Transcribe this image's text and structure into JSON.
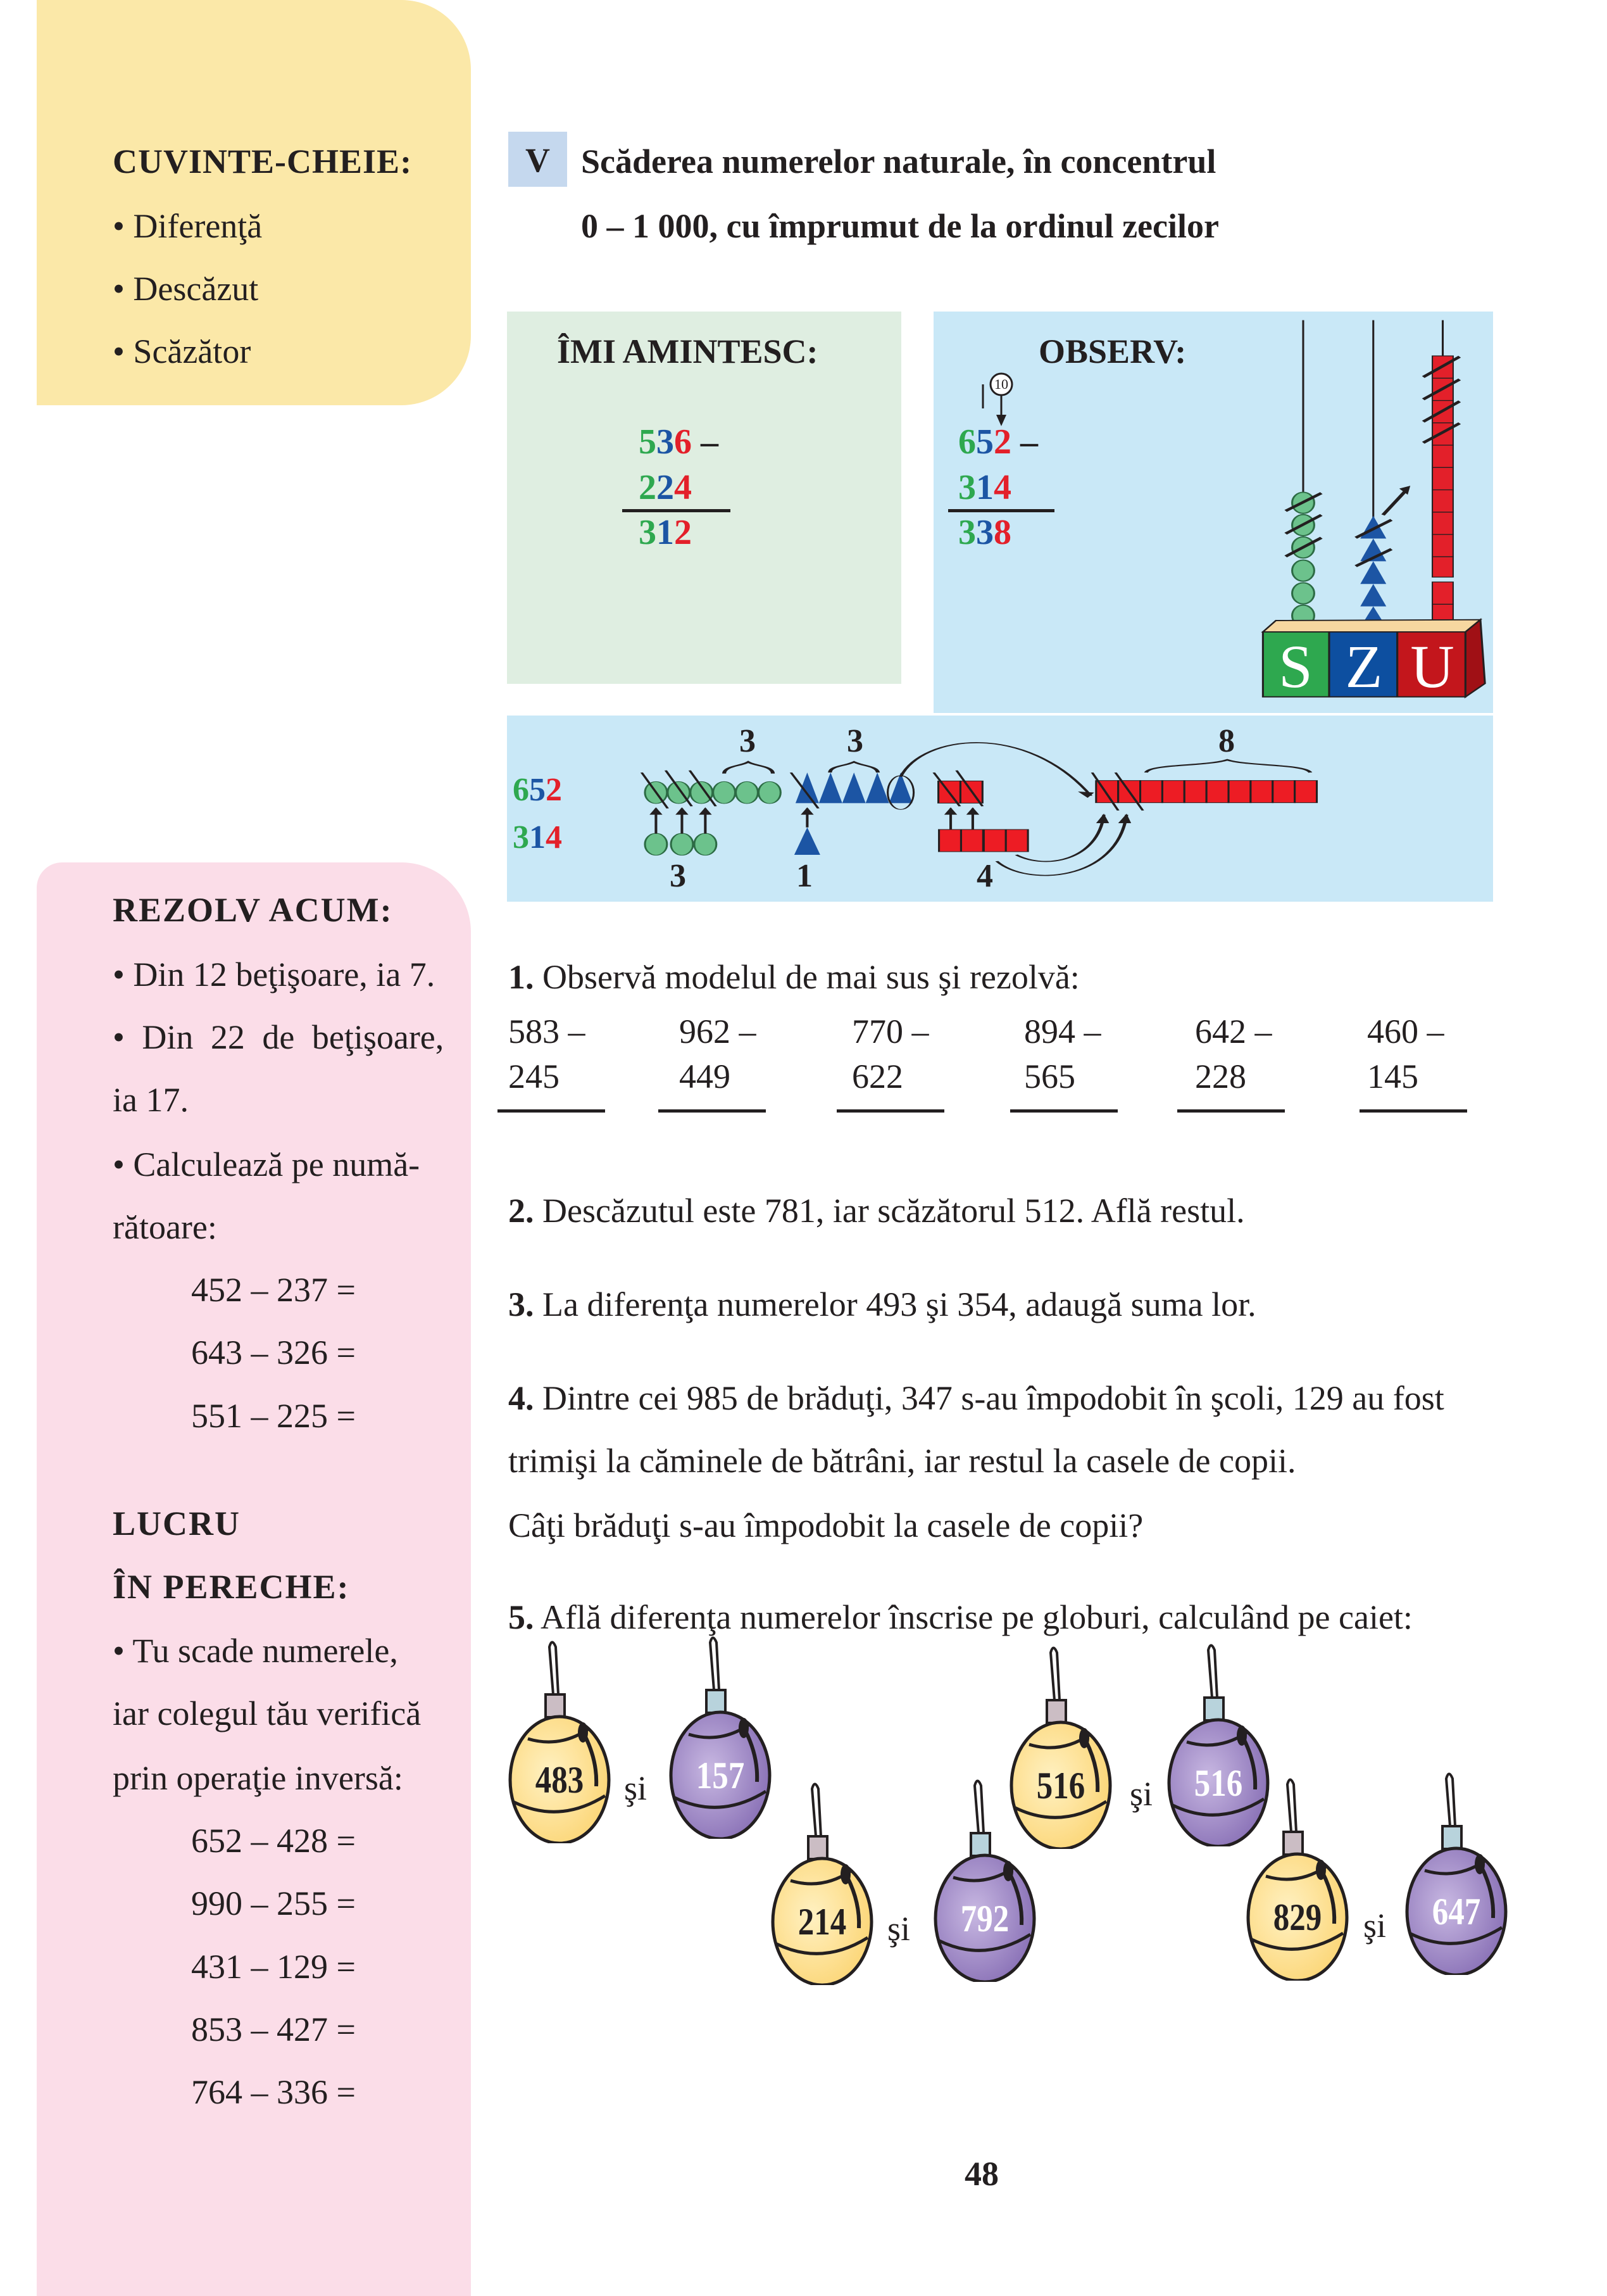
{
  "sidebar_top": {
    "heading": "CUVINTE-CHEIE:",
    "items": [
      "Diferenţă",
      "Descăzut",
      "Scăzător"
    ]
  },
  "lesson": {
    "number": "V",
    "title_lines": [
      "Scăderea numerelor naturale, în concentrul",
      "0 – 1 000, cu împrumut de la ordinul zecilor"
    ]
  },
  "imi_amintesc": {
    "heading": "ÎMI AMINTESC:",
    "minuend": [
      "5",
      "3",
      "6"
    ],
    "minus": "–",
    "subtrahend": [
      "2",
      "2",
      "4"
    ],
    "result": [
      "3",
      "1",
      "2"
    ]
  },
  "observ": {
    "heading": "OBSERV:",
    "borrow_badge": "10",
    "minuend": [
      "6",
      "5",
      "2"
    ],
    "minus": "–",
    "subtrahend": [
      "3",
      "1",
      "4"
    ],
    "result": [
      "3",
      "3",
      "8"
    ],
    "abacus_labels": [
      "S",
      "Z",
      "U"
    ]
  },
  "model": {
    "minuend": [
      "6",
      "5",
      "2"
    ],
    "subtrahend": [
      "3",
      "1",
      "4"
    ],
    "top_counts": [
      "3",
      "3",
      "8"
    ],
    "bottom_counts": [
      "3",
      "1",
      "4"
    ]
  },
  "colors": {
    "hundreds": "#2ea84f",
    "tens": "#1c55a4",
    "units": "#e3202a",
    "keywords_panel": "#fbe8a8",
    "sidebar_panel": "#fbdde8",
    "remember_panel": "#dfeee1",
    "observe_panel": "#c9e8f7"
  },
  "exercises": {
    "ex1": {
      "number": "1.",
      "text": "Observă modelul de mai sus şi rezolvă:",
      "problems": [
        {
          "top": "583 –",
          "bottom": "245"
        },
        {
          "top": "962 –",
          "bottom": "449"
        },
        {
          "top": "770 –",
          "bottom": "622"
        },
        {
          "top": "894 –",
          "bottom": "565"
        },
        {
          "top": "642 –",
          "bottom": "228"
        },
        {
          "top": "460 –",
          "bottom": "145"
        }
      ]
    },
    "ex2": {
      "number": "2.",
      "text": "Descăzutul este 781, iar scăzătorul 512. Află restul."
    },
    "ex3": {
      "number": "3.",
      "text": "La diferenţa numerelor 493 şi 354, adaugă suma lor."
    },
    "ex4": {
      "number": "4.",
      "lines": [
        "Dintre cei 985 de brăduţi, 347 s-au împodobit în şcoli, 129 au fost",
        "trimişi la căminele de bătrâni, iar restul la casele de copii.",
        "Câţi brăduţi s-au împodobit la casele de copii?"
      ]
    },
    "ex5": {
      "number": "5.",
      "text": "Află diferenţa numerelor înscrise pe globuri, calculând pe caiet:"
    }
  },
  "ornaments": [
    {
      "value": "483",
      "color": "yellow"
    },
    {
      "value": "157",
      "color": "purple"
    },
    {
      "value": "214",
      "color": "yellow"
    },
    {
      "value": "792",
      "color": "purple"
    },
    {
      "value": "516",
      "color": "yellow"
    },
    {
      "value": "516",
      "color": "purple"
    },
    {
      "value": "829",
      "color": "yellow"
    },
    {
      "value": "647",
      "color": "purple"
    }
  ],
  "and_word": "şi",
  "sidebar_bottom": {
    "rezolv": {
      "heading": "REZOLV ACUM:",
      "lines": [
        "• Din 12 beţişoare, ia 7.",
        "• Din 22 de beţişoare,",
        "ia 17.",
        "• Calculează pe numă-",
        "rătoare:"
      ],
      "equations": [
        "452 – 237 =",
        "643 – 326 =",
        "551 – 225 ="
      ]
    },
    "pereche": {
      "heading_lines": [
        "LUCRU",
        "ÎN PERECHE:"
      ],
      "lines": [
        "• Tu scade numerele,",
        "iar colegul tău verifică",
        "prin operaţie inversă:"
      ],
      "equations": [
        "652 – 428 =",
        "990 – 255 =",
        "431 – 129 =",
        "853 – 427 =",
        "764 – 336 ="
      ]
    }
  },
  "page_number": "48"
}
